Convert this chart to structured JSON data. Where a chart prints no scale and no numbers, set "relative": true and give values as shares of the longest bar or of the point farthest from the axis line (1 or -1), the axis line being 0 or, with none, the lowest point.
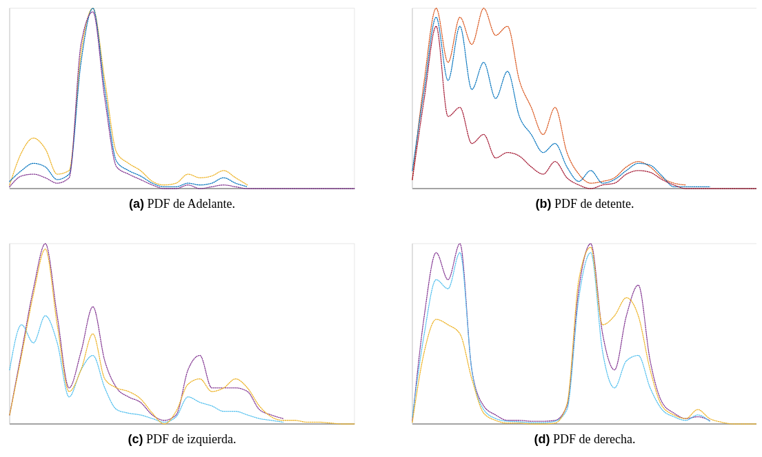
{
  "chart_data": [
    {
      "type": "line",
      "title": "(a) PDF de Adelante.",
      "relative": true,
      "line_style": "dotted",
      "categories": [
        null,
        null,
        null,
        null,
        null,
        null,
        null,
        null,
        null,
        null,
        null,
        null,
        null,
        null,
        null,
        null,
        null,
        null,
        null,
        null,
        null,
        null,
        null,
        null,
        null,
        null,
        null,
        null,
        null,
        null
      ],
      "series": [
        {
          "color": "#edb120",
          "values": [
            0.02,
            0.2,
            0.28,
            0.22,
            0.08,
            0.1,
            0.75,
            1.0,
            0.6,
            0.2,
            0.14,
            0.1,
            0.04,
            0.02,
            0.03,
            0.08,
            0.06,
            0.07,
            0.1,
            0.06,
            0.02,
            null,
            null,
            null,
            null,
            null,
            null,
            null,
            null,
            null
          ]
        },
        {
          "color": "#0072bd",
          "values": [
            0.04,
            0.1,
            0.14,
            0.12,
            0.05,
            0.08,
            0.7,
            1.0,
            0.55,
            0.15,
            0.1,
            0.07,
            0.03,
            0.01,
            0.01,
            0.03,
            0.02,
            0.03,
            0.06,
            0.03,
            0.01,
            null,
            null,
            null,
            null,
            null,
            null,
            null,
            null,
            null
          ]
        },
        {
          "color": "#7e2f8e",
          "values": [
            0.01,
            0.07,
            0.08,
            0.06,
            0.03,
            0.06,
            0.8,
            0.98,
            0.5,
            0.12,
            0.08,
            0.05,
            0.02,
            0,
            0,
            0.02,
            0,
            0.01,
            0.02,
            0.01,
            0,
            0,
            0,
            0,
            0,
            0,
            0,
            0,
            0,
            0
          ]
        }
      ]
    },
    {
      "type": "line",
      "title": "(b) PDF de detente.",
      "relative": true,
      "line_style": "dotted",
      "categories": [
        null,
        null,
        null,
        null,
        null,
        null,
        null,
        null,
        null,
        null,
        null,
        null,
        null,
        null,
        null,
        null,
        null,
        null,
        null,
        null,
        null,
        null,
        null,
        null,
        null,
        null,
        null,
        null,
        null,
        null
      ],
      "series": [
        {
          "color": "#d95319",
          "values": [
            0.05,
            0.6,
            1.0,
            0.7,
            0.95,
            0.8,
            1.0,
            0.85,
            0.9,
            0.6,
            0.45,
            0.3,
            0.45,
            0.2,
            0.08,
            0.03,
            0.04,
            0.06,
            0.12,
            0.15,
            0.12,
            0.06,
            0.03,
            0.02,
            null,
            null,
            null,
            null,
            null,
            null
          ]
        },
        {
          "color": "#0072bd",
          "values": [
            0.1,
            0.55,
            0.95,
            0.6,
            0.9,
            0.55,
            0.7,
            0.5,
            0.65,
            0.4,
            0.3,
            0.2,
            0.25,
            0.12,
            0.04,
            0.1,
            0.03,
            0.05,
            0.1,
            0.14,
            0.13,
            0.07,
            0.01,
            0.01,
            0.01,
            0.01,
            null,
            null,
            null,
            null
          ]
        },
        {
          "color": "#a2142f",
          "values": [
            0.05,
            0.5,
            0.9,
            0.4,
            0.45,
            0.25,
            0.3,
            0.17,
            0.2,
            0.18,
            0.12,
            0.08,
            0.15,
            0.06,
            0.02,
            0,
            0.02,
            0.03,
            0.08,
            0.1,
            0.09,
            0.05,
            0.02,
            0,
            0,
            0,
            0,
            0,
            0,
            0
          ]
        }
      ]
    },
    {
      "type": "line",
      "title": "(c) PDF de izquierda.",
      "relative": true,
      "line_style": "dotted",
      "categories": [
        null,
        null,
        null,
        null,
        null,
        null,
        null,
        null,
        null,
        null,
        null,
        null,
        null,
        null,
        null,
        null,
        null,
        null,
        null,
        null,
        null,
        null,
        null,
        null,
        null,
        null,
        null,
        null,
        null,
        null
      ],
      "series": [
        {
          "color": "#7e2f8e",
          "values": [
            0.05,
            0.4,
            0.75,
            1.0,
            0.6,
            0.2,
            0.4,
            0.65,
            0.35,
            0.2,
            0.15,
            0.12,
            0.05,
            0.02,
            0.05,
            0.3,
            0.38,
            0.2,
            0.2,
            0.2,
            0.18,
            0.08,
            0.05,
            0.03,
            null,
            null,
            null,
            null,
            null,
            null
          ]
        },
        {
          "color": "#4dbeee",
          "values": [
            0.3,
            0.55,
            0.45,
            0.6,
            0.45,
            0.15,
            0.3,
            0.38,
            0.2,
            0.08,
            0.06,
            0.05,
            0.03,
            0.01,
            0.04,
            0.15,
            0.12,
            0.1,
            0.07,
            0.07,
            0.05,
            0.03,
            0.02,
            0.01,
            null,
            null,
            null,
            null,
            null,
            null
          ]
        },
        {
          "color": "#edb120",
          "values": [
            0.05,
            0.38,
            0.72,
            0.97,
            0.55,
            0.18,
            0.3,
            0.5,
            0.25,
            0.2,
            0.18,
            0.14,
            0.06,
            0,
            0.07,
            0.22,
            0.25,
            0.18,
            0.2,
            0.25,
            0.2,
            0.1,
            0.04,
            0.02,
            0.02,
            0.01,
            0.01,
            0.005,
            0,
            0
          ]
        }
      ]
    },
    {
      "type": "line",
      "title": "(d) PDF de derecha.",
      "relative": true,
      "line_style": "dotted",
      "categories": [
        null,
        null,
        null,
        null,
        null,
        null,
        null,
        null,
        null,
        null,
        null,
        null,
        null,
        null,
        null,
        null,
        null,
        null,
        null,
        null,
        null,
        null,
        null,
        null,
        null,
        null,
        null,
        null,
        null,
        null
      ],
      "series": [
        {
          "color": "#7e2f8e",
          "values": [
            0.02,
            0.6,
            0.95,
            0.8,
            1.0,
            0.3,
            0.1,
            0.05,
            0.02,
            0.02,
            0.015,
            0.015,
            0.02,
            0.1,
            0.75,
            1.0,
            0.5,
            0.3,
            0.6,
            0.77,
            0.35,
            0.12,
            0.06,
            0.03,
            0.04,
            0.02,
            null,
            null,
            null,
            null
          ]
        },
        {
          "color": "#4dbeee",
          "values": [
            0.04,
            0.5,
            0.8,
            0.75,
            0.95,
            0.3,
            0.08,
            0.03,
            0.015,
            0.012,
            0.007,
            0.007,
            0.015,
            0.08,
            0.7,
            0.95,
            0.4,
            0.2,
            0.35,
            0.38,
            0.2,
            0.08,
            0.04,
            0.02,
            0.05,
            0.015,
            null,
            null,
            null,
            null
          ]
        },
        {
          "color": "#edb120",
          "values": [
            0.01,
            0.4,
            0.58,
            0.55,
            0.5,
            0.25,
            0.06,
            0.02,
            0.005,
            0.005,
            0,
            0,
            0.005,
            0.11,
            0.8,
            0.98,
            0.55,
            0.6,
            0.7,
            0.6,
            0.3,
            0.1,
            0.05,
            0.03,
            0.08,
            0.03,
            0.01,
            0,
            0,
            0
          ]
        }
      ]
    }
  ]
}
